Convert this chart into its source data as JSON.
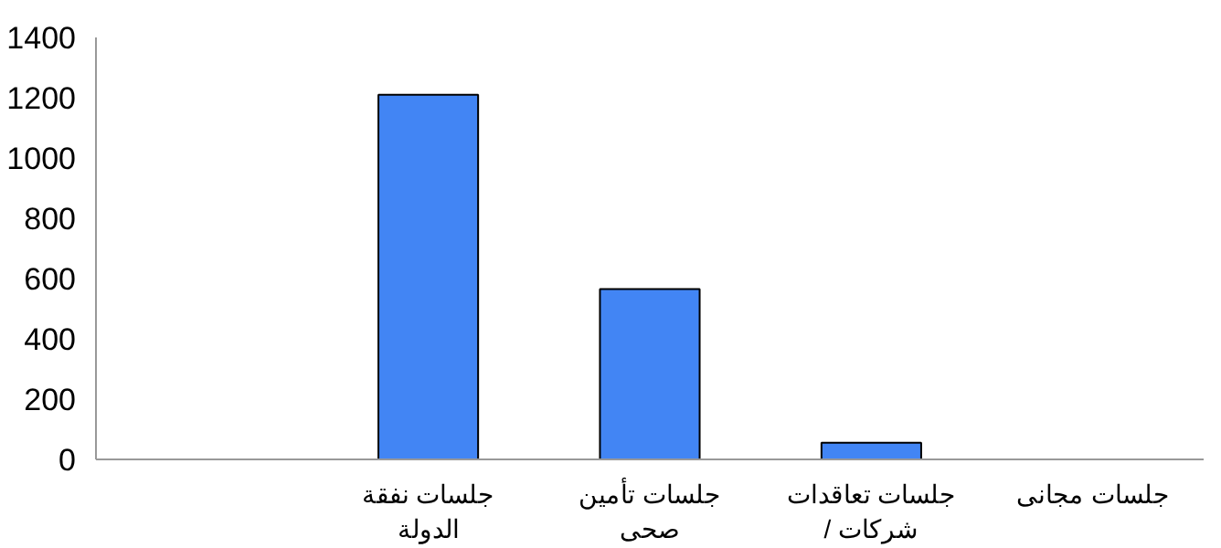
{
  "chart_data": {
    "type": "bar",
    "categories": [
      null,
      "جلسات نفقة الدولة",
      "جلسات تأمين صحى",
      "جلسات تعاقدات / شركات",
      "جلسات مجانى"
    ],
    "values": [
      null,
      1210,
      565,
      55,
      null
    ],
    "color": "#4285f4",
    "ylim": [
      0,
      1400
    ],
    "yticks": [
      0,
      200,
      400,
      600,
      800,
      1000,
      1200,
      1400
    ],
    "grid": false
  }
}
